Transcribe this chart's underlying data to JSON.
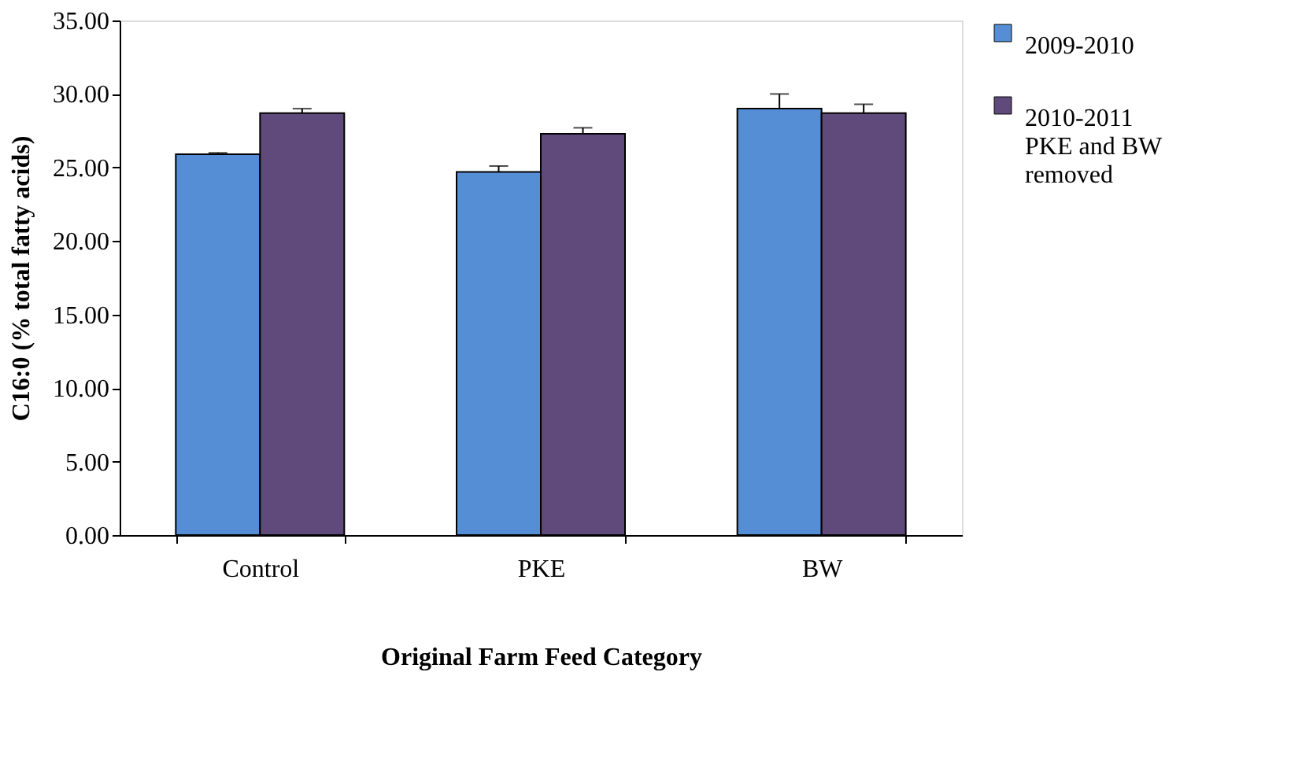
{
  "chart_data": {
    "type": "bar",
    "xlabel": "Original  Farm Feed Category",
    "ylabel": "C16:0 (% total fatty acids)",
    "categories": [
      "Control",
      "PKE",
      "BW"
    ],
    "series": [
      {
        "name": "2009-2010",
        "color": "#558ed5",
        "values": [
          25.9,
          24.7,
          29.0
        ],
        "errors": [
          0.1,
          0.4,
          1.0
        ]
      },
      {
        "name": "2010-2011 PKE and BW removed",
        "color": "#604a7b",
        "values": [
          28.7,
          27.3,
          28.7
        ],
        "errors": [
          0.3,
          0.4,
          0.6
        ]
      }
    ],
    "ylim": [
      0,
      35
    ],
    "yticks": [
      {
        "value": 0,
        "label": "0.00"
      },
      {
        "value": 5,
        "label": "5.00"
      },
      {
        "value": 10,
        "label": "10.00"
      },
      {
        "value": 15,
        "label": "15.00"
      },
      {
        "value": 20,
        "label": "20.00"
      },
      {
        "value": 25,
        "label": "25.00"
      },
      {
        "value": 30,
        "label": "30.00"
      },
      {
        "value": 35,
        "label": "35.00"
      }
    ],
    "grid": false,
    "legend": "right"
  }
}
